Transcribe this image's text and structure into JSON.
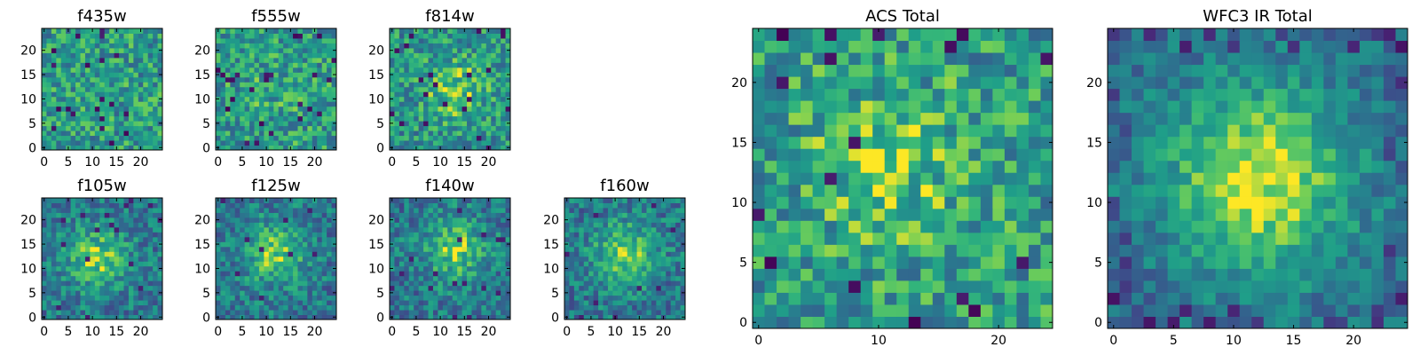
{
  "chart_data": [
    {
      "type": "heatmap",
      "title": "f435w",
      "grid_size": 25,
      "xlim": [
        -0.5,
        24.5
      ],
      "ylim": [
        -0.5,
        24.5
      ],
      "xticks": [
        0,
        5,
        10,
        15,
        20
      ],
      "yticks": [
        0,
        5,
        10,
        15,
        20
      ],
      "origin": "lower",
      "colormap": "viridis",
      "pattern": "noise",
      "peak": [
        12,
        12
      ],
      "peak_strength": 0.0,
      "seed": 11
    },
    {
      "type": "heatmap",
      "title": "f555w",
      "grid_size": 25,
      "xlim": [
        -0.5,
        24.5
      ],
      "ylim": [
        -0.5,
        24.5
      ],
      "xticks": [
        0,
        5,
        10,
        15,
        20
      ],
      "yticks": [
        0,
        5,
        10,
        15,
        20
      ],
      "origin": "lower",
      "colormap": "viridis",
      "pattern": "noise",
      "peak": [
        12,
        12
      ],
      "peak_strength": 0.05,
      "seed": 23
    },
    {
      "type": "heatmap",
      "title": "f814w",
      "grid_size": 25,
      "xlim": [
        -0.5,
        24.5
      ],
      "ylim": [
        -0.5,
        24.5
      ],
      "xticks": [
        0,
        5,
        10,
        15,
        20
      ],
      "yticks": [
        0,
        5,
        10,
        15,
        20
      ],
      "origin": "lower",
      "colormap": "viridis",
      "pattern": "faint-source",
      "peak": [
        13,
        12
      ],
      "peak_strength": 0.25,
      "seed": 37
    },
    {
      "type": "heatmap",
      "title": "f105w",
      "grid_size": 25,
      "xlim": [
        -0.5,
        24.5
      ],
      "ylim": [
        -0.5,
        24.5
      ],
      "xticks": [
        0,
        5,
        10,
        15,
        20
      ],
      "yticks": [
        0,
        5,
        10,
        15,
        20
      ],
      "origin": "lower",
      "colormap": "viridis",
      "pattern": "source",
      "peak": [
        11,
        12
      ],
      "peak_strength": 0.7,
      "seed": 41
    },
    {
      "type": "heatmap",
      "title": "f125w",
      "grid_size": 25,
      "xlim": [
        -0.5,
        24.5
      ],
      "ylim": [
        -0.5,
        24.5
      ],
      "xticks": [
        0,
        5,
        10,
        15,
        20
      ],
      "yticks": [
        0,
        5,
        10,
        15,
        20
      ],
      "origin": "lower",
      "colormap": "viridis",
      "pattern": "source",
      "peak": [
        12,
        13
      ],
      "peak_strength": 0.7,
      "seed": 53
    },
    {
      "type": "heatmap",
      "title": "f140w",
      "grid_size": 25,
      "xlim": [
        -0.5,
        24.5
      ],
      "ylim": [
        -0.5,
        24.5
      ],
      "xticks": [
        0,
        5,
        10,
        15,
        20
      ],
      "yticks": [
        0,
        5,
        10,
        15,
        20
      ],
      "origin": "lower",
      "colormap": "viridis",
      "pattern": "source",
      "peak": [
        13,
        14
      ],
      "peak_strength": 0.7,
      "seed": 67
    },
    {
      "type": "heatmap",
      "title": "f160w",
      "grid_size": 25,
      "xlim": [
        -0.5,
        24.5
      ],
      "ylim": [
        -0.5,
        24.5
      ],
      "xticks": [
        0,
        5,
        10,
        15,
        20
      ],
      "yticks": [
        0,
        5,
        10,
        15,
        20
      ],
      "origin": "lower",
      "colormap": "viridis",
      "pattern": "source",
      "peak": [
        12,
        13
      ],
      "peak_strength": 0.75,
      "seed": 79
    },
    {
      "type": "heatmap",
      "title": "ACS Total",
      "grid_size": 25,
      "xlim": [
        -0.5,
        24.5
      ],
      "ylim": [
        -0.5,
        24.5
      ],
      "xticks": [
        0,
        10,
        20
      ],
      "yticks": [
        0,
        5,
        10,
        15,
        20
      ],
      "origin": "lower",
      "colormap": "viridis",
      "pattern": "noise",
      "peak": [
        11,
        13
      ],
      "peak_strength": 0.2,
      "seed": 97
    },
    {
      "type": "heatmap",
      "title": "WFC3 IR Total",
      "grid_size": 25,
      "xlim": [
        -0.5,
        24.5
      ],
      "ylim": [
        -0.5,
        24.5
      ],
      "xticks": [
        0,
        5,
        10,
        15,
        20
      ],
      "yticks": [
        0,
        5,
        10,
        15,
        20
      ],
      "origin": "lower",
      "colormap": "viridis",
      "pattern": "strong-source",
      "peak": [
        12,
        12
      ],
      "peak_strength": 1.0,
      "seed": 113
    }
  ]
}
